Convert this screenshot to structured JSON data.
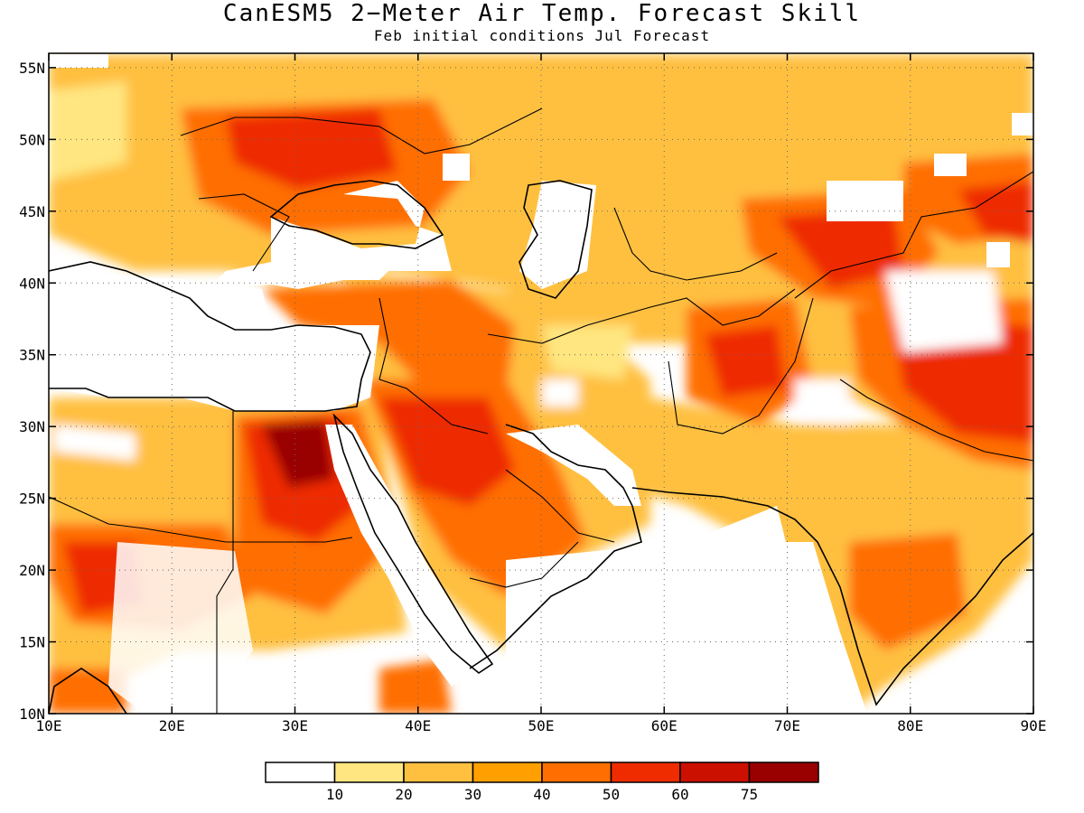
{
  "title": "CanESM5 2−Meter Air Temp. Forecast Skill",
  "subtitle": "Feb initial conditions   Jul Forecast",
  "map": {
    "lon_range": [
      10,
      90
    ],
    "lat_range": [
      10,
      56
    ],
    "lon_ticks": [
      "10E",
      "20E",
      "30E",
      "40E",
      "50E",
      "60E",
      "70E",
      "80E",
      "90E"
    ],
    "lat_ticks": [
      "10N",
      "15N",
      "20N",
      "25N",
      "30N",
      "35N",
      "40N",
      "45N",
      "50N",
      "55N"
    ],
    "gridlines": "dotted"
  },
  "legend": {
    "colors": [
      "#ffffff",
      "#ffe680",
      "#ffc040",
      "#ffa000",
      "#ff6e00",
      "#ee2c00",
      "#cc1000",
      "#990000"
    ],
    "labels": [
      "10",
      "20",
      "30",
      "40",
      "50",
      "60",
      "75"
    ]
  }
}
